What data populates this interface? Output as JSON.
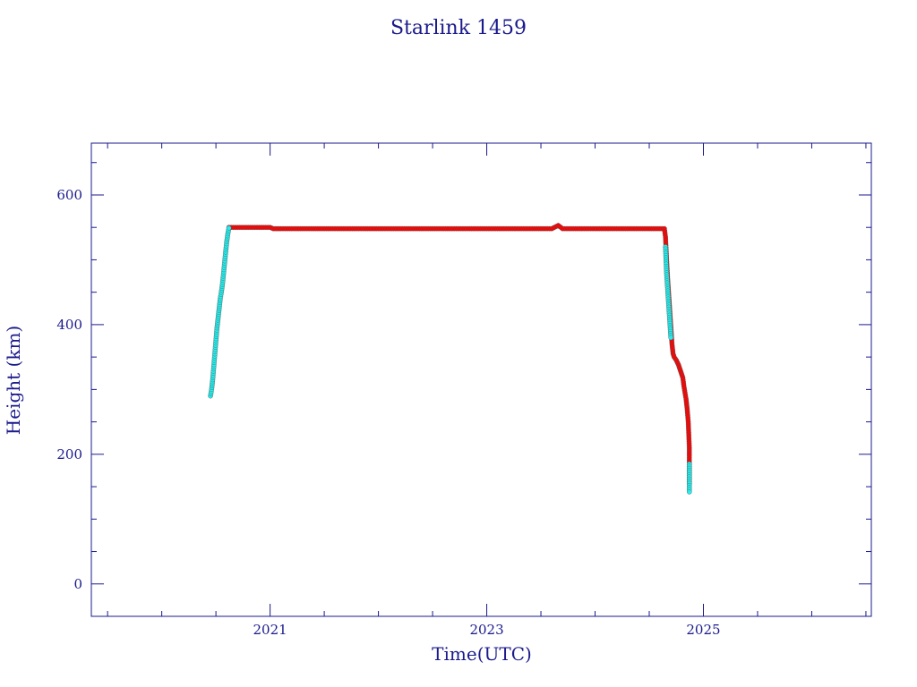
{
  "chart_data": {
    "type": "scatter",
    "title": "Starlink 1459",
    "xlabel": "Time(UTC)",
    "ylabel": "Height (km)",
    "xlim": [
      2019.35,
      2026.55
    ],
    "ylim": [
      -50,
      680
    ],
    "x_ticks": [
      2021,
      2023,
      2025
    ],
    "y_ticks": [
      0,
      200,
      400,
      600
    ],
    "grid": false,
    "colors": {
      "axis": "#1a1a8c",
      "series_primary": "#ff0000",
      "series_secondary": "#22eeee",
      "marker_edge": "#555555"
    },
    "series": [
      {
        "color": "#22eeee",
        "points": [
          [
            2020.45,
            290
          ],
          [
            2020.46,
            300
          ],
          [
            2020.47,
            315
          ],
          [
            2020.48,
            335
          ],
          [
            2020.49,
            355
          ],
          [
            2020.5,
            375
          ],
          [
            2020.51,
            395
          ],
          [
            2020.52,
            410
          ],
          [
            2020.53,
            425
          ],
          [
            2020.54,
            440
          ],
          [
            2020.55,
            450
          ],
          [
            2020.56,
            462
          ],
          [
            2020.57,
            478
          ],
          [
            2020.58,
            495
          ],
          [
            2020.59,
            512
          ],
          [
            2020.6,
            528
          ],
          [
            2020.61,
            540
          ],
          [
            2020.62,
            549
          ],
          [
            2024.65,
            520
          ],
          [
            2024.66,
            480
          ],
          [
            2024.67,
            455
          ],
          [
            2024.68,
            430
          ],
          [
            2024.69,
            405
          ],
          [
            2024.7,
            380
          ],
          [
            2024.87,
            185
          ],
          [
            2024.87,
            175
          ],
          [
            2024.87,
            142
          ]
        ]
      },
      {
        "color": "#ff0000",
        "points": [
          [
            2020.62,
            550
          ],
          [
            2020.7,
            550
          ],
          [
            2020.8,
            550
          ],
          [
            2020.9,
            550
          ],
          [
            2021.0,
            550
          ],
          [
            2021.03,
            548
          ],
          [
            2021.1,
            548
          ],
          [
            2021.2,
            548
          ],
          [
            2021.3,
            548
          ],
          [
            2021.4,
            548
          ],
          [
            2021.5,
            548
          ],
          [
            2021.6,
            548
          ],
          [
            2021.7,
            548
          ],
          [
            2021.8,
            548
          ],
          [
            2021.9,
            548
          ],
          [
            2022.0,
            548
          ],
          [
            2022.1,
            548
          ],
          [
            2022.2,
            548
          ],
          [
            2022.3,
            548
          ],
          [
            2022.4,
            548
          ],
          [
            2022.5,
            548
          ],
          [
            2022.6,
            548
          ],
          [
            2022.7,
            548
          ],
          [
            2022.8,
            548
          ],
          [
            2022.9,
            548
          ],
          [
            2023.0,
            548
          ],
          [
            2023.1,
            548
          ],
          [
            2023.2,
            548
          ],
          [
            2023.3,
            548
          ],
          [
            2023.4,
            548
          ],
          [
            2023.5,
            548
          ],
          [
            2023.6,
            548
          ],
          [
            2023.66,
            553
          ],
          [
            2023.7,
            548
          ],
          [
            2023.8,
            548
          ],
          [
            2023.9,
            548
          ],
          [
            2024.0,
            548
          ],
          [
            2024.1,
            548
          ],
          [
            2024.2,
            548
          ],
          [
            2024.3,
            548
          ],
          [
            2024.4,
            548
          ],
          [
            2024.5,
            548
          ],
          [
            2024.6,
            548
          ],
          [
            2024.64,
            548
          ],
          [
            2024.65,
            535
          ],
          [
            2024.66,
            500
          ],
          [
            2024.67,
            470
          ],
          [
            2024.68,
            445
          ],
          [
            2024.69,
            420
          ],
          [
            2024.7,
            395
          ],
          [
            2024.71,
            370
          ],
          [
            2024.72,
            355
          ],
          [
            2024.73,
            350
          ],
          [
            2024.75,
            345
          ],
          [
            2024.77,
            338
          ],
          [
            2024.79,
            328
          ],
          [
            2024.81,
            318
          ],
          [
            2024.82,
            305
          ],
          [
            2024.83,
            295
          ],
          [
            2024.84,
            285
          ],
          [
            2024.85,
            270
          ],
          [
            2024.86,
            250
          ],
          [
            2024.865,
            230
          ],
          [
            2024.87,
            210
          ],
          [
            2024.87,
            198
          ],
          [
            2024.87,
            155
          ]
        ]
      }
    ]
  }
}
